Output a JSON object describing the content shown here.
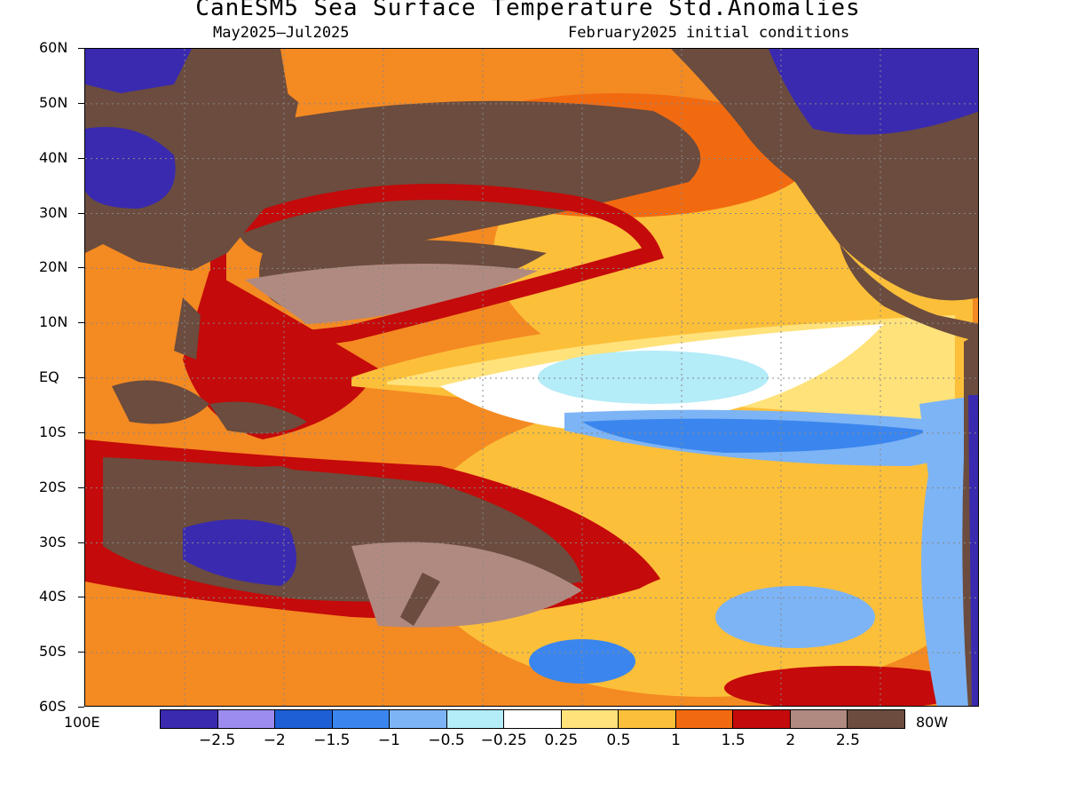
{
  "title": "CanESM5 Sea Surface Temperature Std.Anomalies",
  "subtitle_left": "May2025–Jul2025",
  "subtitle_right": "February2025 initial conditions",
  "map": {
    "lon_left_label": "100E",
    "lon_right_label": "80W",
    "lat_labels": [
      "60N",
      "50N",
      "40N",
      "30N",
      "20N",
      "10N",
      "EQ",
      "10S",
      "20S",
      "30S",
      "40S",
      "50S",
      "60S"
    ],
    "land_color": "#6b4c3e",
    "ocean_background": "#f0a030"
  },
  "colorbar": {
    "colors": [
      "#3a2ab0",
      "#9d8cf0",
      "#1e5fd6",
      "#3b86ee",
      "#7db4f5",
      "#b4ecf8",
      "#ffffff",
      "#ffe27a",
      "#fcbf3a",
      "#f26a10",
      "#c40a0a",
      "#b08a80",
      "#6b4c3e"
    ],
    "labels": [
      "−2.5",
      "−2",
      "−1.5",
      "−1",
      "−0.5",
      "−0.25",
      "0.25",
      "0.5",
      "1",
      "1.5",
      "2",
      "2.5"
    ]
  }
}
